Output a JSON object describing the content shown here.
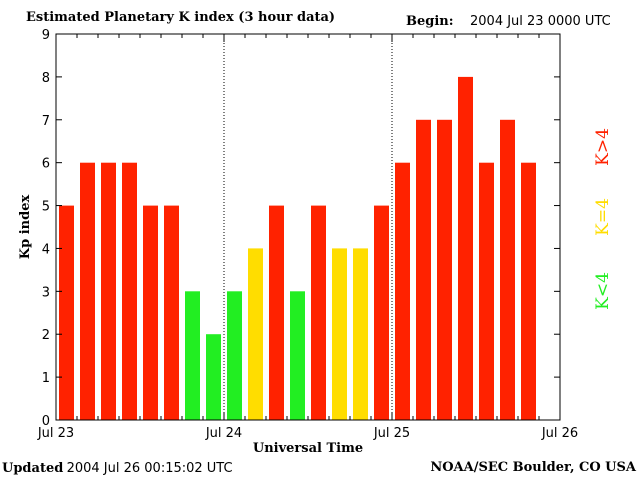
{
  "header": {
    "title": "Estimated Planetary K index (3 hour data)",
    "begin_label": "Begin:",
    "begin_value": "2004 Jul 23 0000 UTC"
  },
  "footer": {
    "updated_label": "Updated",
    "updated_value": "2004 Jul 26 00:15:02 UTC",
    "credit": "NOAA/SEC Boulder, CO USA"
  },
  "legend": {
    "high": "K>4",
    "equal": "K=4",
    "low": "K<4"
  },
  "colors": {
    "high": "#ff2200",
    "equal": "#ffdd00",
    "low": "#22ee22",
    "axis": "#000000"
  },
  "chart_data": {
    "type": "bar",
    "title": "Estimated Planetary K index (3 hour data)",
    "xlabel": "Universal Time",
    "ylabel": "Kp index",
    "ylim": [
      0,
      9
    ],
    "yticks": [
      "0",
      "1",
      "2",
      "3",
      "4",
      "5",
      "6",
      "7",
      "8",
      "9"
    ],
    "xtick_labels": [
      "Jul 23",
      "Jul 24",
      "Jul 25",
      "Jul 26"
    ],
    "interval_hours": 3,
    "values": [
      5,
      6,
      6,
      6,
      5,
      5,
      3,
      2,
      3,
      4,
      5,
      3,
      5,
      4,
      4,
      5,
      6,
      7,
      7,
      8,
      6,
      7,
      6
    ]
  }
}
